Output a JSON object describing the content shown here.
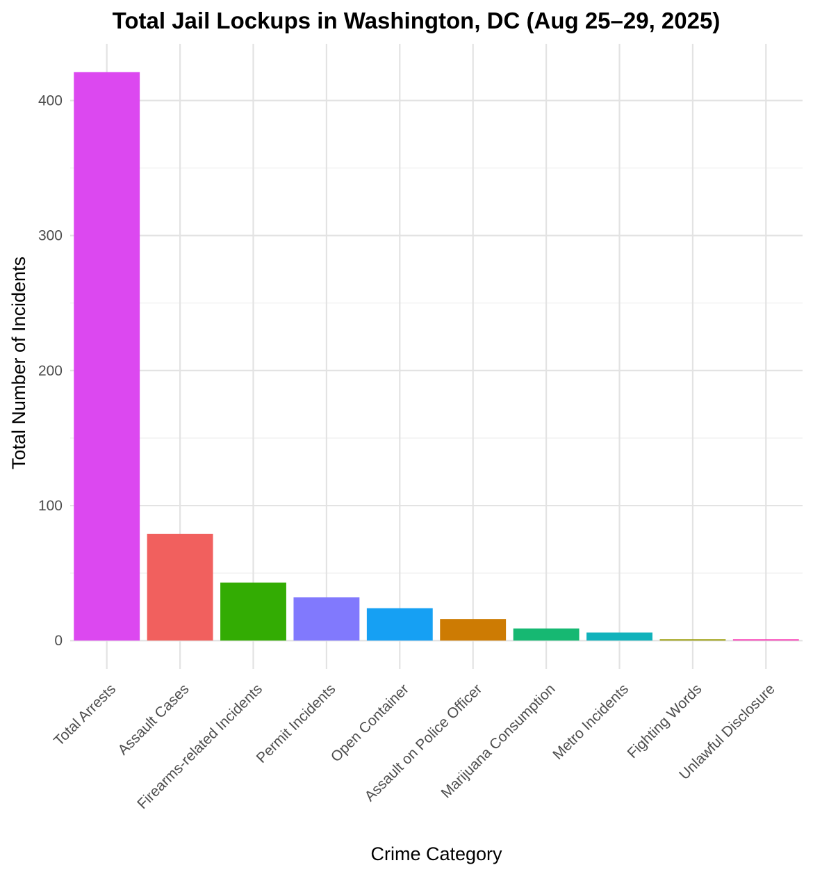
{
  "chart_data": {
    "type": "bar",
    "title": "Total Jail Lockups in Washington, DC (Aug 25–29, 2025)",
    "xlabel": "Crime Category",
    "ylabel": "Total Number of Incidents",
    "categories": [
      "Total Arrests",
      "Assault Cases",
      "Firearms-related Incidents",
      "Permit Incidents",
      "Open Container",
      "Assault on Police Officer",
      "Marijuana Consumption",
      "Metro Incidents",
      "Fighting Words",
      "Unlawful Disclosure"
    ],
    "values": [
      421,
      79,
      43,
      32,
      24,
      16,
      9,
      6,
      1,
      1
    ],
    "colors": [
      "#DC48F0",
      "#F1605E",
      "#33AC03",
      "#8179FD",
      "#16A0F3",
      "#CD7B03",
      "#16B872",
      "#11B2BB",
      "#999B05",
      "#F73CB5"
    ],
    "ylim": [
      -21,
      442
    ],
    "yticks": [
      0,
      100,
      200,
      300,
      400
    ],
    "grid": true,
    "legend": "none"
  }
}
